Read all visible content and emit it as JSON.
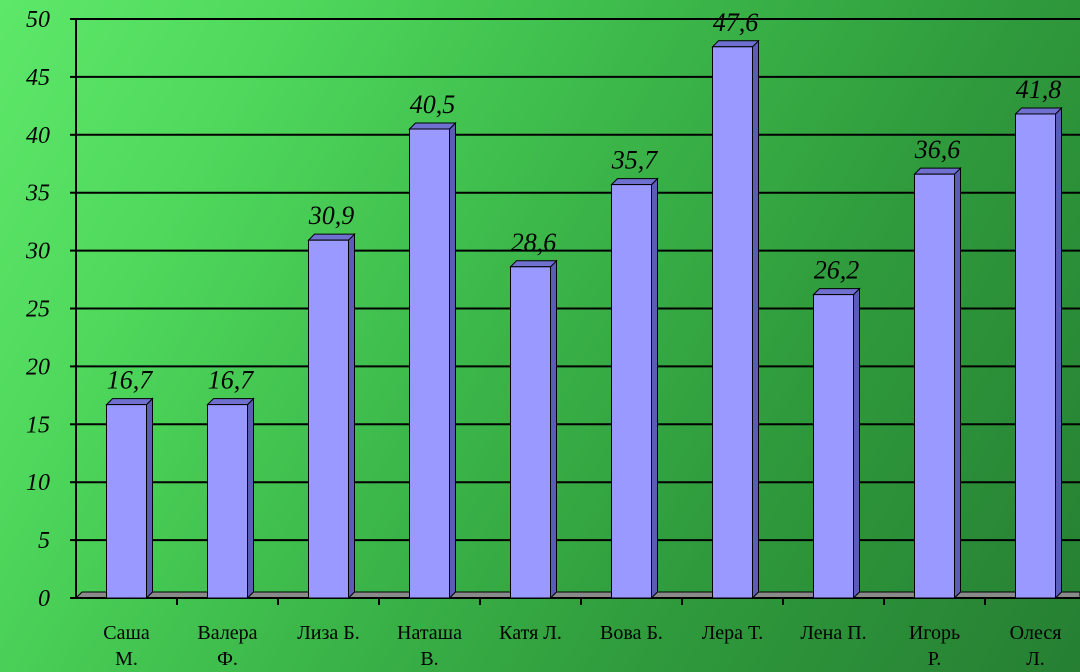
{
  "chart_data": {
    "type": "bar",
    "categories": [
      [
        "Саша",
        "М."
      ],
      [
        "Валера",
        "Ф."
      ],
      [
        "Лиза Б."
      ],
      [
        "Наташа",
        "В."
      ],
      [
        "Катя Л."
      ],
      [
        "Вова Б."
      ],
      [
        "Лера Т."
      ],
      [
        "Лена П."
      ],
      [
        "Игорь",
        "Р."
      ],
      [
        "Олеся",
        "Л."
      ]
    ],
    "values": [
      16.7,
      16.7,
      30.9,
      40.5,
      28.6,
      35.7,
      47.6,
      26.2,
      36.6,
      41.8
    ],
    "value_labels": [
      "16,7",
      "16,7",
      "30,9",
      "40,5",
      "28,6",
      "35,7",
      "47,6",
      "26,2",
      "36,6",
      "41,8"
    ],
    "ylim": [
      0,
      50
    ],
    "yticks": [
      "0",
      "5",
      "10",
      "15",
      "20",
      "25",
      "30",
      "35",
      "40",
      "45",
      "50"
    ],
    "grid": true,
    "colors": {
      "bar_front": "#9999ff",
      "bar_side": "#5b5bb8",
      "bar_top": "#7070d0",
      "floor": "#8a8a8a",
      "gridline": "#000000"
    }
  }
}
